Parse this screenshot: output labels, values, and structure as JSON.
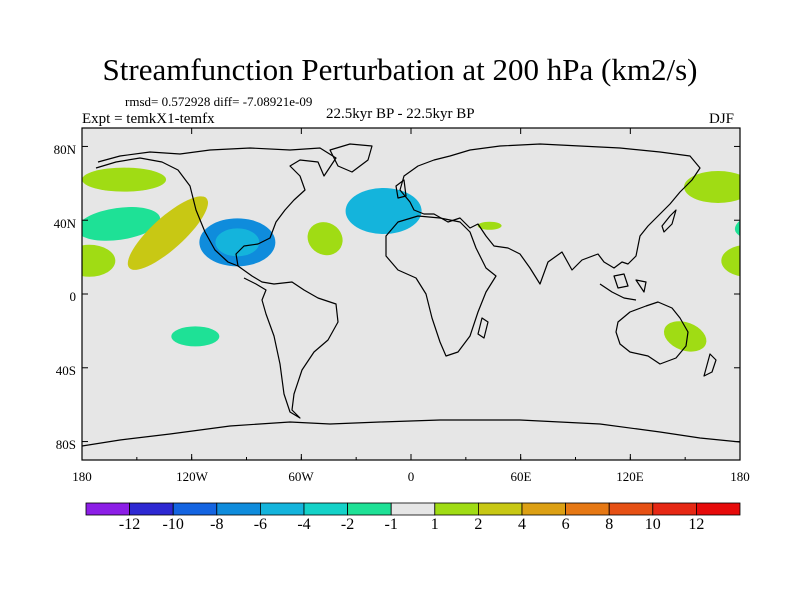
{
  "title": "Streamfunction Perturbation at 200 hPa (km2/s)",
  "stats": "rmsd= 0.572928 diff= -7.08921e-09",
  "experiment": "Expt = temkX1-temfx",
  "period": "22.5kyr BP - 22.5kyr BP",
  "season": "DJF",
  "axes": {
    "lat_ticks": [
      "80N",
      "40N",
      "0",
      "40S",
      "80S"
    ],
    "lon_ticks": [
      "180",
      "120W",
      "60W",
      "0",
      "60E",
      "120E",
      "180"
    ]
  },
  "colorbar": {
    "labels": [
      "-12",
      "-10",
      "-8",
      "-6",
      "-4",
      "-2",
      "-1",
      "1",
      "2",
      "4",
      "6",
      "8",
      "10",
      "12"
    ],
    "colors": [
      "#8c1ee6",
      "#2d28d2",
      "#1464e1",
      "#0f8cdc",
      "#14b4dc",
      "#14d2c8",
      "#1ee196",
      "#e6e6e6",
      "#a0dc14",
      "#c8c814",
      "#dca014",
      "#e67814",
      "#e65014",
      "#e62814",
      "#e60a0a"
    ]
  },
  "map": {
    "ocean_color": "#e6e6e6",
    "coast_color": "#000000",
    "anomalies": [
      {
        "region": "North Pacific (east of dateline)",
        "lon": -157,
        "lat": 62,
        "level": 2,
        "color": "#a0dc14"
      },
      {
        "region": "Central North Pacific",
        "lon": -160,
        "lat": 38,
        "level": -2,
        "color": "#1ee196"
      },
      {
        "region": "Subtropical Pacific (west)",
        "lon": -176,
        "lat": 18,
        "level": 2,
        "color": "#a0dc14"
      },
      {
        "region": "Northeast Pacific / Baja",
        "lon": -133,
        "lat": 33,
        "level": 4,
        "color": "#c8c814"
      },
      {
        "region": "Gulf of Mexico",
        "lon": -95,
        "lat": 28,
        "level": -6,
        "color": "#0f8cdc"
      },
      {
        "region": "Central North Atlantic",
        "lon": -47,
        "lat": 30,
        "level": 2,
        "color": "#a0dc14"
      },
      {
        "region": "Northeast Atlantic",
        "lon": -15,
        "lat": 45,
        "level": -4,
        "color": "#14b4dc"
      },
      {
        "region": "Caspian",
        "lon": 43,
        "lat": 37,
        "level": 2,
        "color": "#a0dc14"
      },
      {
        "region": "South Pacific",
        "lon": -118,
        "lat": -23,
        "level": -2,
        "color": "#1ee196"
      },
      {
        "region": "Eastern Australia",
        "lon": 150,
        "lat": -23,
        "level": 2,
        "color": "#a0dc14"
      },
      {
        "region": "Northwest Pacific",
        "lon": 168,
        "lat": 58,
        "level": 2,
        "color": "#a0dc14"
      }
    ]
  }
}
